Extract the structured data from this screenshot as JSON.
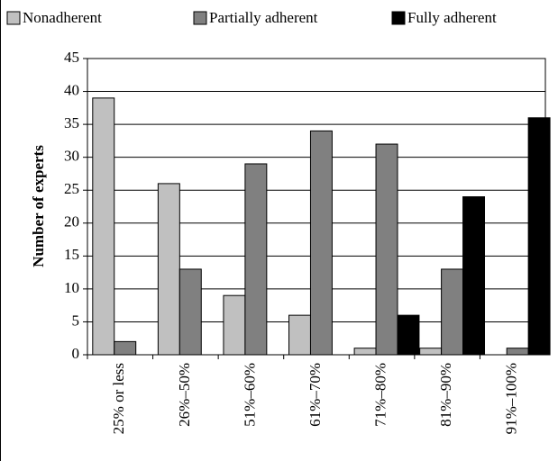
{
  "chart_data": {
    "type": "bar",
    "y_label": "Number of experts",
    "categories": [
      "25% or less",
      "26%–50%",
      "51%–60%",
      "61%–70%",
      "71%–80%",
      "81%–90%",
      "91%–100%"
    ],
    "series": [
      {
        "name": "Nonadherent",
        "color": "#c0c0c0",
        "values": [
          39,
          26,
          9,
          6,
          1,
          1,
          0
        ]
      },
      {
        "name": "Partially adherent",
        "color": "#808080",
        "values": [
          2,
          13,
          29,
          34,
          32,
          13,
          1
        ]
      },
      {
        "name": "Fully adherent",
        "color": "#000000",
        "values": [
          0,
          0,
          0,
          0,
          6,
          24,
          36
        ]
      }
    ],
    "ylim": [
      0,
      45
    ],
    "yticks": [
      0,
      5,
      10,
      15,
      20,
      25,
      30,
      35,
      40,
      45
    ],
    "grid": true
  }
}
